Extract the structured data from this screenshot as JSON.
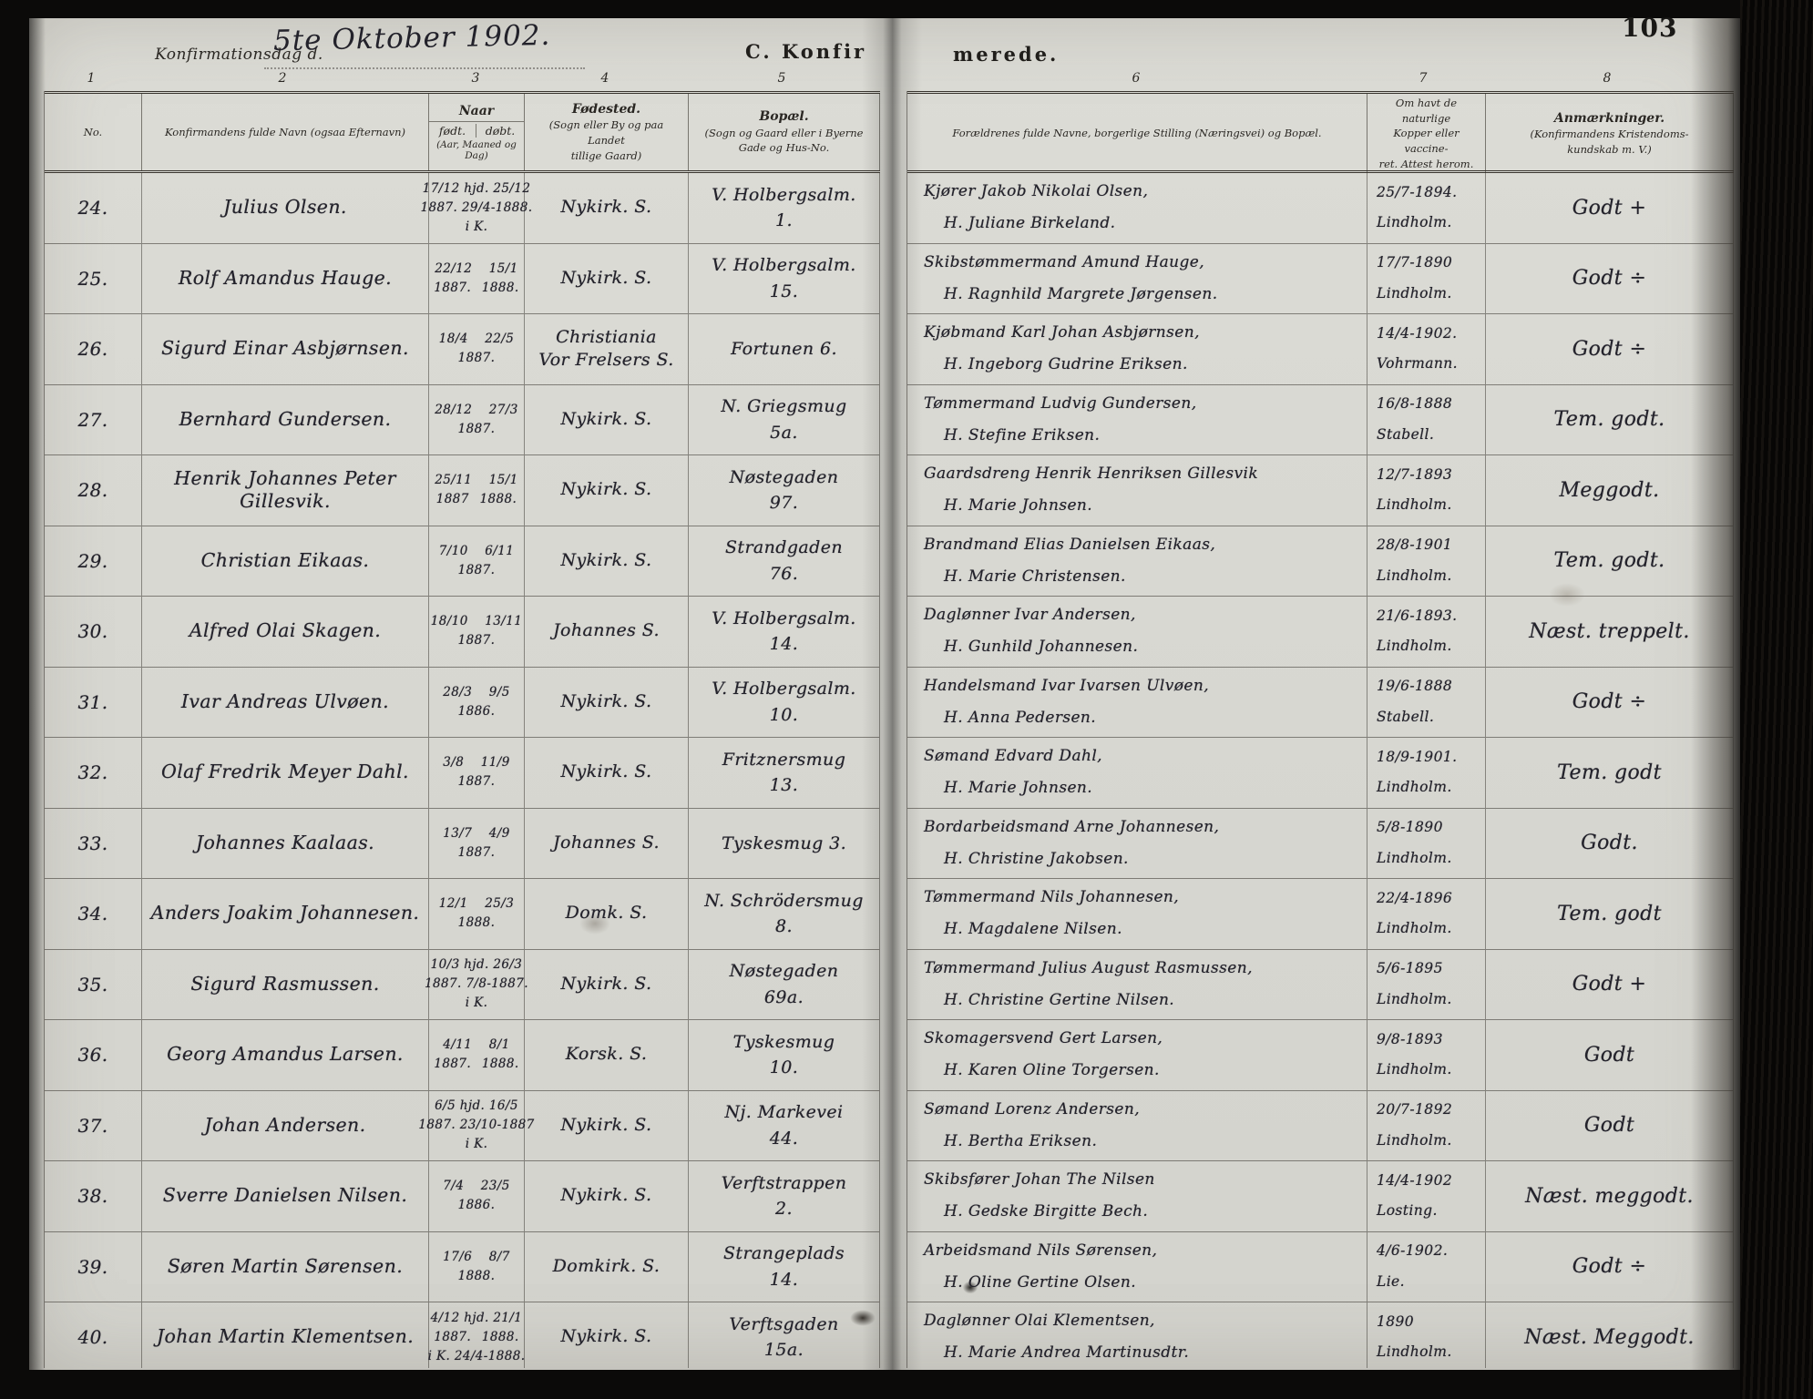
{
  "page": {
    "number": "103"
  },
  "header": {
    "confirmation_day_label": "Konfirmationsdag d.",
    "confirmation_day_value": "5te Oktober 1902.",
    "section_title_left": "C. Konfir",
    "section_title_right": "merede.",
    "column_numbers": [
      "1",
      "2",
      "3",
      "4",
      "5",
      "6",
      "7",
      "8"
    ]
  },
  "table": {
    "no": "No.",
    "name": "Konfirmandens fulde Navn (ogsaa Efternavn)",
    "naar": "Naar",
    "fodt": "født.",
    "dobt": "døbt.",
    "naar_note": "(Aar, Maaned og Dag)",
    "birthplace": [
      "Fødested.",
      "(Sogn eller By og paa Landet",
      "tillige Gaard)"
    ],
    "residence": [
      "Bopæl.",
      "(Sogn og Gaard eller i Byerne",
      "Gade og Hus-No."
    ],
    "parents": "Forældrenes fulde Navne, borgerlige Stilling (Næringsvei) og Bopæl.",
    "vaccine": [
      "Om havt de naturlige",
      "Kopper eller vaccine-",
      "ret.  Attest herom."
    ],
    "remarks": [
      "Anmærkninger.",
      "(Konfirmandens Kristendoms-",
      "kundskab  m. V.)"
    ]
  },
  "rows": [
    {
      "no": "24.",
      "name": [
        "Julius Olsen."
      ],
      "naar": [
        "17/12 hjd. 25/12",
        "1887. 29/4-1888.",
        "i K."
      ],
      "birthplace": [
        "Nykirk. S."
      ],
      "residence": [
        "V. Holbergsalm.",
        "1."
      ],
      "parents": [
        "Kjører Jakob Nikolai Olsen,",
        "H. Juliane Birkeland."
      ],
      "vaccine": [
        "25/7-1894.",
        "Lindholm."
      ],
      "remark": "Godt +"
    },
    {
      "no": "25.",
      "name": [
        "Rolf Amandus Hauge."
      ],
      "naar": [
        "22/12  15/1",
        "1887.  1888."
      ],
      "birthplace": [
        "Nykirk. S."
      ],
      "residence": [
        "V. Holbergsalm.",
        "15."
      ],
      "parents": [
        "Skibstømmermand Amund Hauge,",
        "H. Ragnhild Margrete Jørgensen."
      ],
      "vaccine": [
        "17/7-1890",
        "Lindholm."
      ],
      "remark": "Godt ÷"
    },
    {
      "no": "26.",
      "name": [
        "Sigurd Einar Asbjørnsen."
      ],
      "naar": [
        "18/4  22/5",
        "1887."
      ],
      "birthplace": [
        "Christiania",
        "Vor Frelsers S."
      ],
      "residence": [
        "Fortunen 6."
      ],
      "parents": [
        "Kjøbmand Karl Johan Asbjørnsen,",
        "H. Ingeborg Gudrine Eriksen."
      ],
      "vaccine": [
        "14/4-1902.",
        "Vohrmann."
      ],
      "remark": "Godt ÷"
    },
    {
      "no": "27.",
      "name": [
        "Bernhard Gundersen."
      ],
      "naar": [
        "28/12  27/3",
        "1887."
      ],
      "birthplace": [
        "Nykirk. S."
      ],
      "residence": [
        "N. Griegsmug",
        "5a."
      ],
      "parents": [
        "Tømmermand Ludvig Gundersen,",
        "H. Stefine Eriksen."
      ],
      "vaccine": [
        "16/8-1888",
        "Stabell."
      ],
      "remark": "Tem. godt."
    },
    {
      "no": "28.",
      "name": [
        "Henrik Johannes Peter",
        "Gillesvik."
      ],
      "naar": [
        "25/11  15/1",
        "1887  1888."
      ],
      "birthplace": [
        "Nykirk. S."
      ],
      "residence": [
        "Nøstegaden",
        "97."
      ],
      "parents": [
        "Gaardsdreng Henrik Henriksen Gillesvik",
        "H. Marie Johnsen."
      ],
      "vaccine": [
        "12/7-1893",
        "Lindholm."
      ],
      "remark": "Meggodt."
    },
    {
      "no": "29.",
      "name": [
        "Christian Eikaas."
      ],
      "naar": [
        "7/10  6/11",
        "1887."
      ],
      "birthplace": [
        "Nykirk. S."
      ],
      "residence": [
        "Strandgaden",
        "76."
      ],
      "parents": [
        "Brandmand Elias Danielsen Eikaas,",
        "H. Marie Christensen."
      ],
      "vaccine": [
        "28/8-1901",
        "Lindholm."
      ],
      "remark": "Tem. godt."
    },
    {
      "no": "30.",
      "name": [
        "Alfred Olai Skagen."
      ],
      "naar": [
        "18/10  13/11",
        "1887."
      ],
      "birthplace": [
        "Johannes S."
      ],
      "residence": [
        "V. Holbergsalm.",
        "14."
      ],
      "parents": [
        "Daglønner Ivar Andersen,",
        "H. Gunhild Johannesen."
      ],
      "vaccine": [
        "21/6-1893.",
        "Lindholm."
      ],
      "remark": "Næst. treppelt."
    },
    {
      "no": "31.",
      "name": [
        "Ivar Andreas Ulvøen."
      ],
      "naar": [
        "28/3  9/5",
        "1886."
      ],
      "birthplace": [
        "Nykirk. S."
      ],
      "residence": [
        "V. Holbergsalm.",
        "10."
      ],
      "parents": [
        "Handelsmand Ivar Ivarsen Ulvøen,",
        "H. Anna Pedersen."
      ],
      "vaccine": [
        "19/6-1888",
        "Stabell."
      ],
      "remark": "Godt ÷"
    },
    {
      "no": "32.",
      "name": [
        "Olaf Fredrik Meyer Dahl."
      ],
      "naar": [
        "3/8  11/9",
        "1887."
      ],
      "birthplace": [
        "Nykirk. S."
      ],
      "residence": [
        "Fritznersmug",
        "13."
      ],
      "parents": [
        "Sømand Edvard Dahl,",
        "H. Marie Johnsen."
      ],
      "vaccine": [
        "18/9-1901.",
        "Lindholm."
      ],
      "remark": "Tem. godt"
    },
    {
      "no": "33.",
      "name": [
        "Johannes Kaalaas."
      ],
      "naar": [
        "13/7  4/9",
        "1887."
      ],
      "birthplace": [
        "Johannes S."
      ],
      "residence": [
        "Tyskesmug 3."
      ],
      "parents": [
        "Bordarbeidsmand Arne Johannesen,",
        "H. Christine Jakobsen."
      ],
      "vaccine": [
        "5/8-1890",
        "Lindholm."
      ],
      "remark": "Godt."
    },
    {
      "no": "34.",
      "name": [
        "Anders Joakim Johannesen."
      ],
      "naar": [
        "12/1  25/3",
        "1888."
      ],
      "birthplace": [
        "Domk. S."
      ],
      "residence": [
        "N. Schrödersmug",
        "8."
      ],
      "parents": [
        "Tømmermand Nils Johannesen,",
        "H. Magdalene Nilsen."
      ],
      "vaccine": [
        "22/4-1896",
        "Lindholm."
      ],
      "remark": "Tem. godt"
    },
    {
      "no": "35.",
      "name": [
        "Sigurd Rasmussen."
      ],
      "naar": [
        "10/3 hjd. 26/3",
        "1887. 7/8-1887.",
        "i K."
      ],
      "birthplace": [
        "Nykirk. S."
      ],
      "residence": [
        "Nøstegaden",
        "69a."
      ],
      "parents": [
        "Tømmermand Julius August Rasmussen,",
        "H. Christine Gertine Nilsen."
      ],
      "vaccine": [
        "5/6-1895",
        "Lindholm."
      ],
      "remark": "Godt +"
    },
    {
      "no": "36.",
      "name": [
        "Georg Amandus Larsen."
      ],
      "naar": [
        "4/11  8/1",
        "1887.  1888."
      ],
      "birthplace": [
        "Korsk. S."
      ],
      "residence": [
        "Tyskesmug",
        "10."
      ],
      "parents": [
        "Skomagersvend Gert Larsen,",
        "H. Karen Oline Torgersen."
      ],
      "vaccine": [
        "9/8-1893",
        "Lindholm."
      ],
      "remark": "Godt"
    },
    {
      "no": "37.",
      "name": [
        "Johan Andersen."
      ],
      "naar": [
        "6/5 hjd. 16/5",
        "1887. 23/10-1887",
        "i K."
      ],
      "birthplace": [
        "Nykirk. S."
      ],
      "residence": [
        "Nj. Markevei",
        "44."
      ],
      "parents": [
        "Sømand Lorenz Andersen,",
        "H. Bertha Eriksen."
      ],
      "vaccine": [
        "20/7-1892",
        "Lindholm."
      ],
      "remark": "Godt"
    },
    {
      "no": "38.",
      "name": [
        "Sverre Danielsen Nilsen."
      ],
      "naar": [
        "7/4  23/5",
        "1886."
      ],
      "birthplace": [
        "Nykirk. S."
      ],
      "residence": [
        "Verftstrappen",
        "2."
      ],
      "parents": [
        "Skibsfører Johan The Nilsen",
        "H. Gedske Birgitte Bech."
      ],
      "vaccine": [
        "14/4-1902",
        "Losting."
      ],
      "remark": "Næst. meggodt."
    },
    {
      "no": "39.",
      "name": [
        "Søren Martin Sørensen."
      ],
      "naar": [
        "17/6  8/7",
        "1888."
      ],
      "birthplace": [
        "Domkirk. S."
      ],
      "residence": [
        "Strangeplads",
        "14."
      ],
      "parents": [
        "Arbeidsmand Nils Sørensen,",
        "H. Oline Gertine Olsen."
      ],
      "vaccine": [
        "4/6-1902.",
        "Lie."
      ],
      "remark": "Godt ÷"
    },
    {
      "no": "40.",
      "name": [
        "Johan Martin Klementsen."
      ],
      "naar": [
        "4/12 hjd. 21/1",
        "1887.  1888.",
        "i K. 24/4-1888."
      ],
      "birthplace": [
        "Nykirk. S."
      ],
      "residence": [
        "Verftsgaden",
        "15a."
      ],
      "parents": [
        "Daglønner Olai Klementsen,",
        "H. Marie Andrea Martinusdtr."
      ],
      "vaccine": [
        "1890",
        "Lindholm."
      ],
      "remark": "Næst. Meggodt."
    }
  ]
}
